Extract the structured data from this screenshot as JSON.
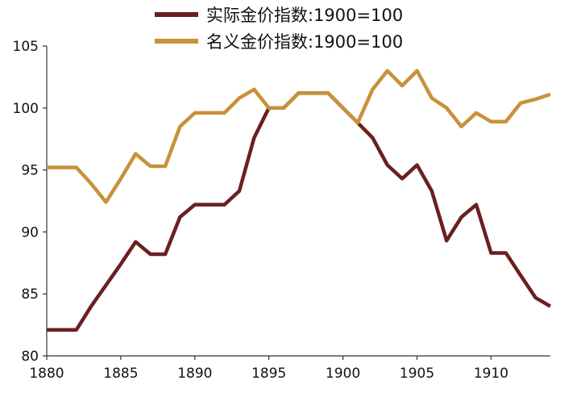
{
  "chart_data": {
    "type": "line",
    "title": "",
    "xlabel": "",
    "ylabel": "",
    "xlim": [
      1880,
      1914
    ],
    "ylim": [
      80,
      105
    ],
    "xticks": [
      1880,
      1885,
      1890,
      1895,
      1900,
      1905,
      1910
    ],
    "yticks": [
      80,
      85,
      90,
      95,
      100,
      105
    ],
    "grid": false,
    "legend_position": "top",
    "x": [
      1880,
      1881,
      1882,
      1883,
      1884,
      1885,
      1886,
      1887,
      1888,
      1889,
      1890,
      1891,
      1892,
      1893,
      1894,
      1895,
      1896,
      1897,
      1898,
      1899,
      1900,
      1901,
      1902,
      1903,
      1904,
      1905,
      1906,
      1907,
      1908,
      1909,
      1910,
      1911,
      1912,
      1913,
      1914
    ],
    "series": [
      {
        "name": "实际金价指数:1900=100",
        "color": "#6b1f1f",
        "values": [
          82.1,
          82.1,
          82.1,
          84.0,
          85.7,
          87.4,
          89.2,
          88.2,
          88.2,
          91.2,
          92.2,
          92.2,
          92.2,
          93.3,
          97.6,
          100.0,
          100.0,
          101.2,
          101.2,
          101.2,
          100.0,
          98.8,
          97.6,
          95.4,
          94.3,
          95.4,
          93.3,
          89.3,
          91.2,
          92.2,
          88.3,
          88.3,
          86.5,
          84.7,
          84.0
        ]
      },
      {
        "name": "名义金价指数:1900=100",
        "color": "#c8913a",
        "values": [
          95.2,
          95.2,
          95.2,
          93.9,
          92.4,
          94.3,
          96.3,
          95.3,
          95.3,
          98.5,
          99.6,
          99.6,
          99.6,
          100.8,
          101.5,
          100.0,
          100.0,
          101.2,
          101.2,
          101.2,
          100.0,
          98.8,
          101.5,
          103.0,
          101.8,
          103.0,
          100.8,
          100.0,
          98.5,
          99.6,
          98.9,
          98.9,
          100.4,
          100.7,
          101.1
        ]
      }
    ]
  }
}
